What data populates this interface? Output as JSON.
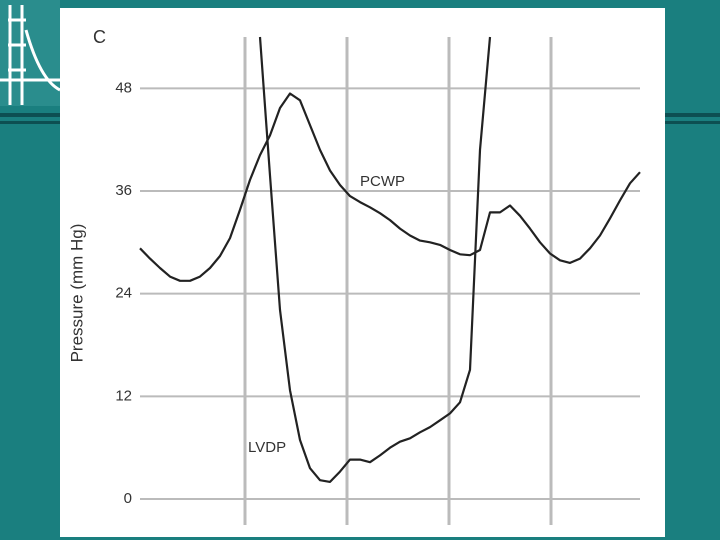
{
  "chart_data": {
    "type": "line",
    "panel_label": "C",
    "y_label": "Pressure (mm Hg)",
    "ylim": [
      0,
      54
    ],
    "yticks": [
      0,
      12,
      24,
      36,
      48
    ],
    "grid": true,
    "series": [
      {
        "name": "PCWP",
        "color": "#222222",
        "values": [
          29.3,
          28.1,
          27.0,
          26.0,
          25.5,
          25.5,
          26.0,
          27.0,
          28.4,
          30.5,
          33.8,
          37.3,
          40.2,
          42.5,
          45.7,
          47.4,
          46.6,
          43.7,
          40.8,
          38.4,
          36.7,
          35.4,
          34.7,
          34.1,
          33.4,
          32.6,
          31.6,
          30.8,
          30.2,
          30.0,
          29.7,
          29.1,
          28.6,
          28.5,
          29.1,
          33.5,
          33.5,
          34.3,
          33.1,
          31.6,
          30.0,
          28.7,
          27.9,
          27.6,
          28.1,
          29.3,
          30.8,
          32.8,
          34.9,
          36.9,
          38.2
        ]
      },
      {
        "name": "LVDP",
        "color": "#222222",
        "values": [
          null,
          null,
          null,
          null,
          null,
          null,
          null,
          null,
          null,
          null,
          null,
          null,
          54,
          37.8,
          22.1,
          12.7,
          6.9,
          3.6,
          2.2,
          2.0,
          3.2,
          4.6,
          4.6,
          4.3,
          5.1,
          6.0,
          6.7,
          7.1,
          7.8,
          8.4,
          9.2,
          10.0,
          11.3,
          15.1,
          40.8,
          54,
          null,
          null,
          null,
          null,
          null,
          null,
          null,
          null,
          null,
          null,
          null,
          null,
          null,
          null,
          null
        ]
      }
    ]
  }
}
